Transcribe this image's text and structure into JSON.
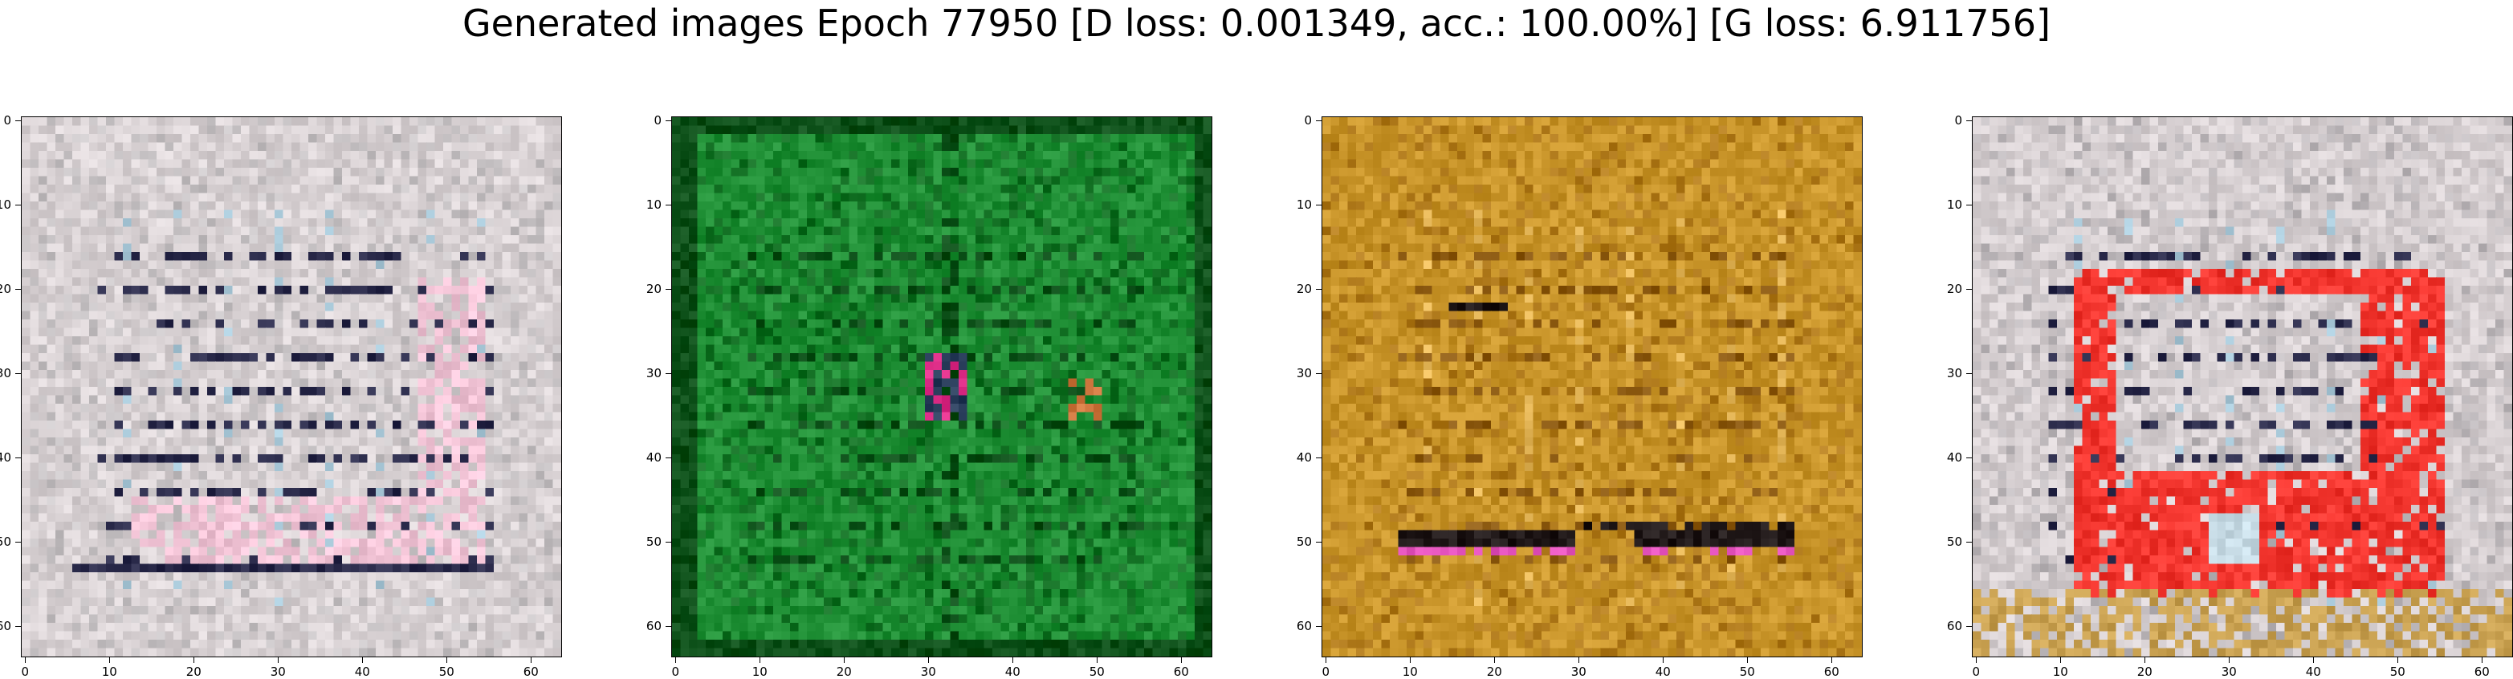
{
  "title": "Generated images Epoch 77950 [D loss: 0.001349, acc.: 100.00%] [G loss: 6.911756]",
  "axis_ticks": {
    "x": [
      "0",
      "10",
      "20",
      "30",
      "40",
      "50",
      "60"
    ],
    "y": [
      "0",
      "10",
      "20",
      "30",
      "40",
      "50",
      "60"
    ]
  },
  "images": [
    {
      "name": "generated-image-1",
      "theme": "pale-gray-noise",
      "palette": [
        "#d9d2d4",
        "#c6c2c4",
        "#f2c4d6",
        "#2a2a4a",
        "#a8c8d8",
        "#e8e0e0"
      ]
    },
    {
      "name": "generated-image-2",
      "theme": "green-grid",
      "palette": [
        "#1f8f35",
        "#137024",
        "#0c4f18",
        "#e0308a",
        "#d07840",
        "#2ea043"
      ]
    },
    {
      "name": "generated-image-3",
      "theme": "ochre-texture",
      "palette": [
        "#c9952a",
        "#b07a1c",
        "#8c5a12",
        "#e04fb8",
        "#201818",
        "#e6b85a"
      ]
    },
    {
      "name": "generated-image-4",
      "theme": "gray-with-red-shape",
      "palette": [
        "#d6cfd1",
        "#bdb8bb",
        "#f2352e",
        "#2a2a4a",
        "#a8c8d8",
        "#c8a050"
      ]
    }
  ]
}
